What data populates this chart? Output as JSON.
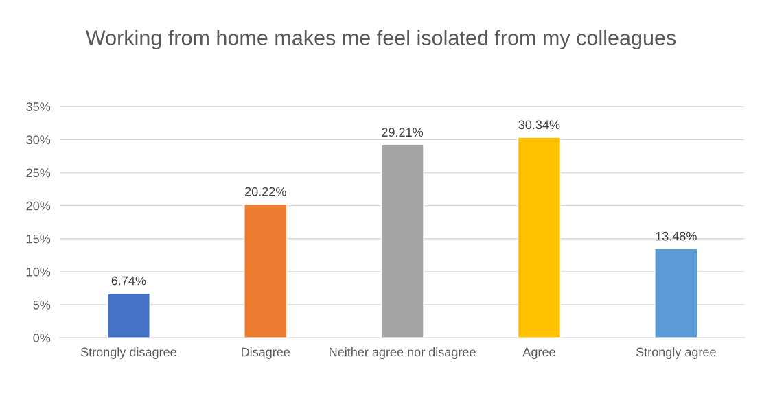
{
  "chart_data": {
    "type": "bar",
    "title": "Working from home makes me feel isolated from my colleagues",
    "categories": [
      "Strongly disagree",
      "Disagree",
      "Neither agree nor disagree",
      "Agree",
      "Strongly agree"
    ],
    "values": [
      6.74,
      20.22,
      29.21,
      30.34,
      13.48
    ],
    "colors": [
      "#4472c4",
      "#ed7d31",
      "#a5a5a5",
      "#ffc000",
      "#5b9bd5"
    ],
    "value_labels": [
      "6.74%",
      "20.22%",
      "29.21%",
      "30.34%",
      "13.48%"
    ],
    "ylim": [
      0,
      35
    ],
    "yticks": [
      {
        "value": 0,
        "label": "0%"
      },
      {
        "value": 5,
        "label": "5%"
      },
      {
        "value": 10,
        "label": "10%"
      },
      {
        "value": 15,
        "label": "15%"
      },
      {
        "value": 20,
        "label": "20%"
      },
      {
        "value": 25,
        "label": "25%"
      },
      {
        "value": 30,
        "label": "30%"
      },
      {
        "value": 35,
        "label": "35%"
      }
    ],
    "grid": "y",
    "legend": false
  }
}
